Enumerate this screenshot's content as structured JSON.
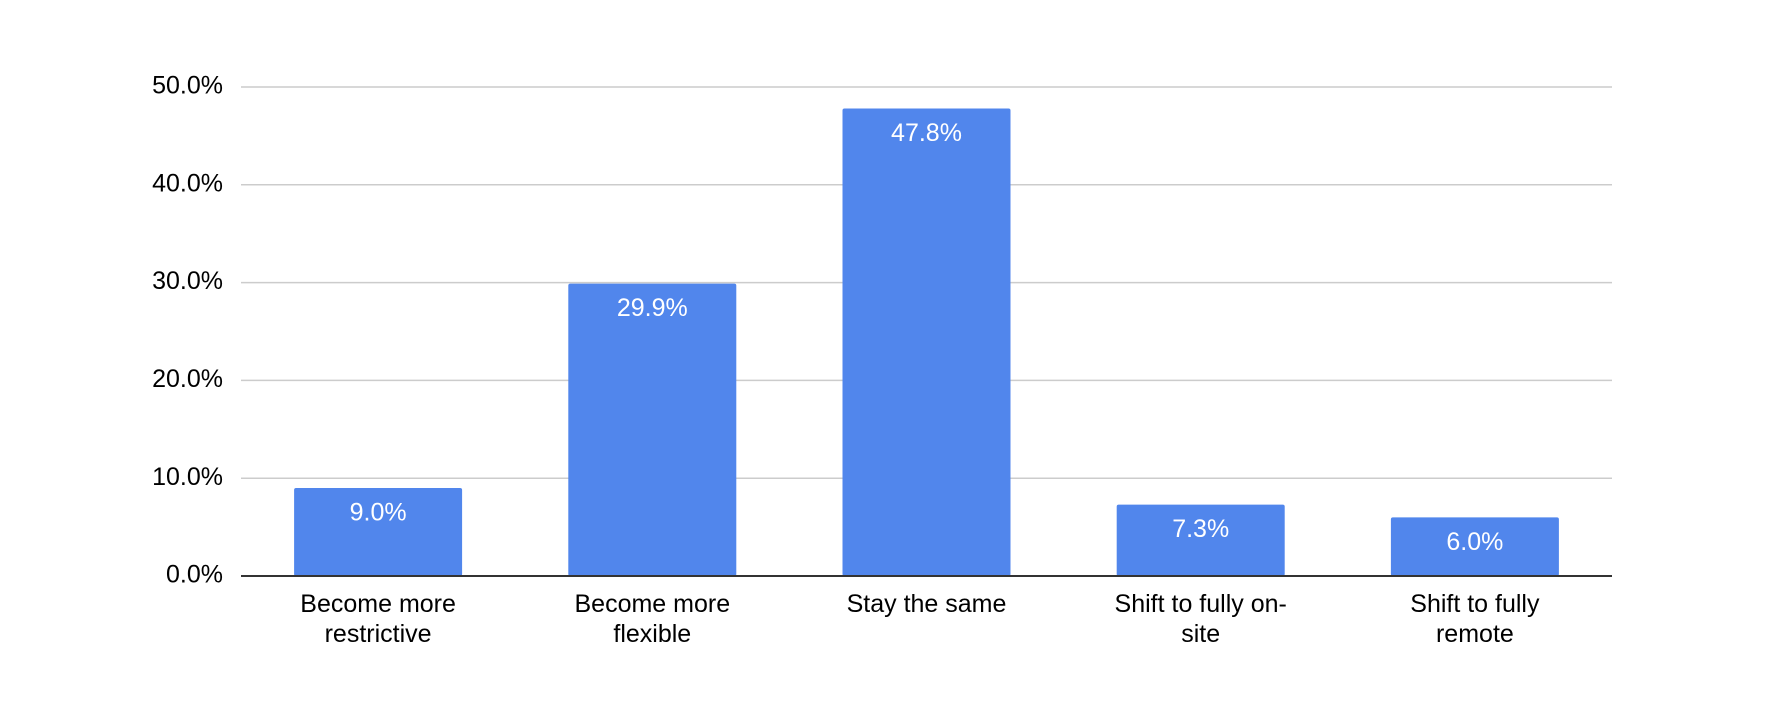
{
  "chart_data": {
    "type": "bar",
    "categories": [
      "Become more restrictive",
      "Become more flexible",
      "Stay the same",
      "Shift to fully on-site",
      "Shift to fully remote"
    ],
    "values": [
      9.0,
      29.9,
      47.8,
      7.3,
      6.0
    ],
    "value_labels": [
      "9.0%",
      "29.9%",
      "47.8%",
      "7.3%",
      "6.0%"
    ],
    "color": "#5186ec",
    "ylim": [
      0,
      50
    ],
    "yticks": [
      {
        "value": 0,
        "label": "0.0%"
      },
      {
        "value": 10,
        "label": "10.0%"
      },
      {
        "value": 20,
        "label": "20.0%"
      },
      {
        "value": 30,
        "label": "30.0%"
      },
      {
        "value": 40,
        "label": "40.0%"
      },
      {
        "value": 50,
        "label": "50.0%"
      }
    ],
    "grid": true
  }
}
